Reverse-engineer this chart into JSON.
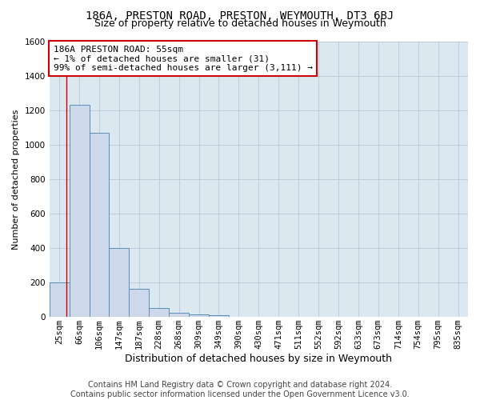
{
  "title": "186A, PRESTON ROAD, PRESTON, WEYMOUTH, DT3 6BJ",
  "subtitle": "Size of property relative to detached houses in Weymouth",
  "xlabel": "Distribution of detached houses by size in Weymouth",
  "ylabel": "Number of detached properties",
  "categories": [
    "25sqm",
    "66sqm",
    "106sqm",
    "147sqm",
    "187sqm",
    "228sqm",
    "268sqm",
    "309sqm",
    "349sqm",
    "390sqm",
    "430sqm",
    "471sqm",
    "511sqm",
    "552sqm",
    "592sqm",
    "633sqm",
    "673sqm",
    "714sqm",
    "754sqm",
    "795sqm",
    "835sqm"
  ],
  "values": [
    200,
    1230,
    1070,
    400,
    165,
    50,
    25,
    15,
    10,
    0,
    0,
    0,
    0,
    0,
    0,
    0,
    0,
    0,
    0,
    0,
    0
  ],
  "bar_color": "#cdd9ea",
  "bar_edge_color": "#5b8db8",
  "annotation_box_text": "186A PRESTON ROAD: 55sqm\n← 1% of detached houses are smaller (31)\n99% of semi-detached houses are larger (3,111) →",
  "ylim": [
    0,
    1600
  ],
  "yticks": [
    0,
    200,
    400,
    600,
    800,
    1000,
    1200,
    1400,
    1600
  ],
  "grid_color": "#b8c8d8",
  "background_color": "#dce8f0",
  "footer_line1": "Contains HM Land Registry data © Crown copyright and database right 2024.",
  "footer_line2": "Contains public sector information licensed under the Open Government Licence v3.0.",
  "annotation_box_facecolor": "#ffffff",
  "annotation_box_edgecolor": "#cc0000",
  "title_fontsize": 10,
  "subtitle_fontsize": 9,
  "xlabel_fontsize": 9,
  "ylabel_fontsize": 8,
  "tick_fontsize": 7.5,
  "annotation_fontsize": 8,
  "footer_fontsize": 7
}
